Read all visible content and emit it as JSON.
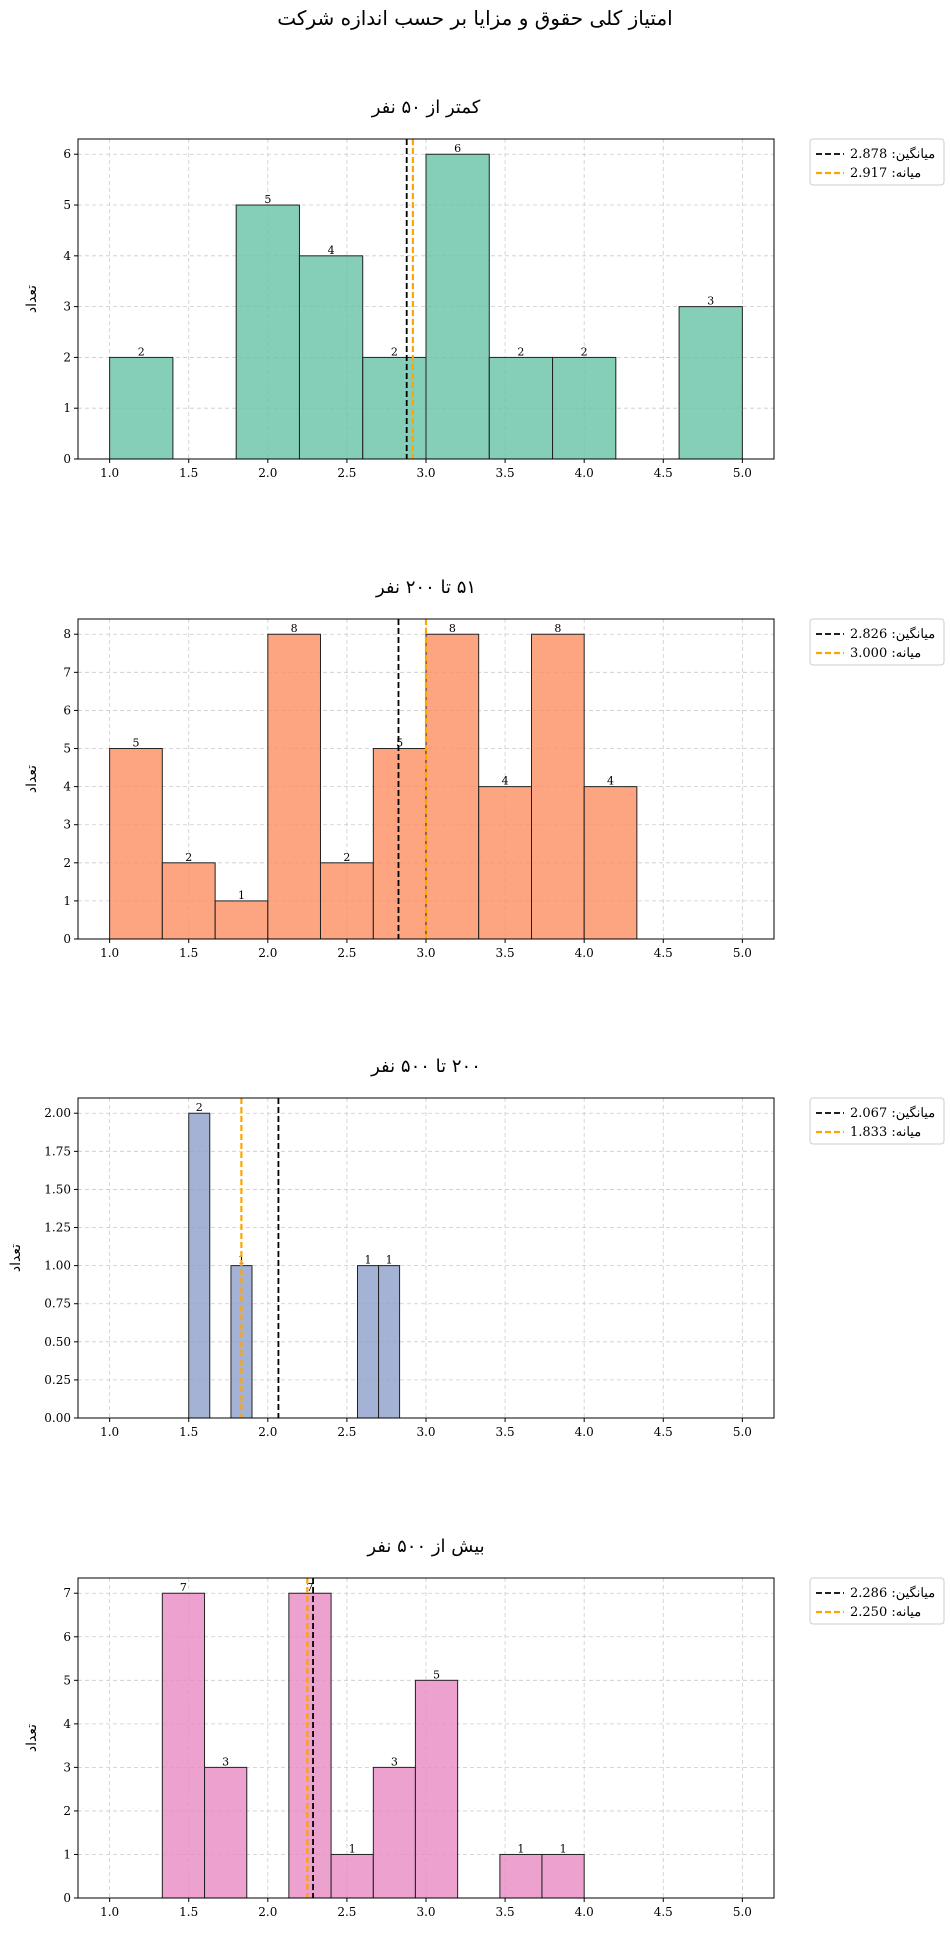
{
  "suptitle": "امتیاز کلی حقوق و مزایا بر حسب اندازه شرکت",
  "chart_data": [
    {
      "type": "bar",
      "title": "کمتر از ۵۰ نفر",
      "ylabel": "تعداد",
      "xlabel": "",
      "xlim": [
        0.8,
        5.2
      ],
      "ylim": [
        0,
        6.3
      ],
      "xticks": [
        "1.0",
        "1.5",
        "2.0",
        "2.5",
        "3.0",
        "3.5",
        "4.0",
        "4.5",
        "5.0"
      ],
      "yticks": [
        "0",
        "1",
        "2",
        "3",
        "4",
        "5",
        "6"
      ],
      "color": "#66c2a5",
      "grid": true,
      "legend_position": "outside-top-right",
      "bins": [
        {
          "x0": 1.0,
          "x1": 1.4,
          "value": 2
        },
        {
          "x0": 1.8,
          "x1": 2.2,
          "value": 5
        },
        {
          "x0": 2.2,
          "x1": 2.6,
          "value": 4
        },
        {
          "x0": 2.6,
          "x1": 3.0,
          "value": 2
        },
        {
          "x0": 3.0,
          "x1": 3.4,
          "value": 6
        },
        {
          "x0": 3.4,
          "x1": 3.8,
          "value": 2
        },
        {
          "x0": 3.8,
          "x1": 4.2,
          "value": 2
        },
        {
          "x0": 4.6,
          "x1": 5.0,
          "value": 3
        }
      ],
      "mean": 2.878,
      "median": 2.917,
      "legend": {
        "mean_label": "میانگین: 2.878",
        "median_label": "میانه: 2.917"
      }
    },
    {
      "type": "bar",
      "title": "۵۱ تا ۲۰۰ نفر",
      "ylabel": "تعداد",
      "xlabel": "",
      "xlim": [
        0.8,
        5.2
      ],
      "ylim": [
        0,
        8.4
      ],
      "xticks": [
        "1.0",
        "1.5",
        "2.0",
        "2.5",
        "3.0",
        "3.5",
        "4.0",
        "4.5",
        "5.0"
      ],
      "yticks": [
        "0",
        "1",
        "2",
        "3",
        "4",
        "5",
        "6",
        "7",
        "8"
      ],
      "color": "#fc8d62",
      "grid": true,
      "legend_position": "outside-top-right",
      "bins": [
        {
          "x0": 1.0,
          "x1": 1.333,
          "value": 5
        },
        {
          "x0": 1.333,
          "x1": 1.667,
          "value": 2
        },
        {
          "x0": 1.667,
          "x1": 2.0,
          "value": 1
        },
        {
          "x0": 2.0,
          "x1": 2.333,
          "value": 8
        },
        {
          "x0": 2.333,
          "x1": 2.667,
          "value": 2
        },
        {
          "x0": 2.667,
          "x1": 3.0,
          "value": 5
        },
        {
          "x0": 3.0,
          "x1": 3.333,
          "value": 8
        },
        {
          "x0": 3.333,
          "x1": 3.667,
          "value": 4
        },
        {
          "x0": 3.667,
          "x1": 4.0,
          "value": 8
        },
        {
          "x0": 4.0,
          "x1": 4.333,
          "value": 4
        }
      ],
      "mean": 2.826,
      "median": 3.0,
      "legend": {
        "mean_label": "میانگین: 2.826",
        "median_label": "میانه: 3.000"
      }
    },
    {
      "type": "bar",
      "title": "۲۰۰ تا ۵۰۰ نفر",
      "ylabel": "تعداد",
      "xlabel": "",
      "xlim": [
        0.8,
        5.2
      ],
      "ylim": [
        0,
        2.1
      ],
      "xticks": [
        "1.0",
        "1.5",
        "2.0",
        "2.5",
        "3.0",
        "3.5",
        "4.0",
        "4.5",
        "5.0"
      ],
      "yticks": [
        "0.00",
        "0.25",
        "0.50",
        "0.75",
        "1.00",
        "1.25",
        "1.50",
        "1.75",
        "2.00"
      ],
      "color": "#8da0cb",
      "grid": true,
      "legend_position": "outside-top-right",
      "bins": [
        {
          "x0": 1.5,
          "x1": 1.633,
          "value": 2
        },
        {
          "x0": 1.767,
          "x1": 1.9,
          "value": 1
        },
        {
          "x0": 2.567,
          "x1": 2.7,
          "value": 1
        },
        {
          "x0": 2.7,
          "x1": 2.833,
          "value": 1
        }
      ],
      "mean": 2.067,
      "median": 1.833,
      "legend": {
        "mean_label": "میانگین: 2.067",
        "median_label": "میانه: 1.833"
      }
    },
    {
      "type": "bar",
      "title": "بیش از ۵۰۰ نفر",
      "ylabel": "تعداد",
      "xlabel": "",
      "xlim": [
        0.8,
        5.2
      ],
      "ylim": [
        0,
        7.35
      ],
      "xticks": [
        "1.0",
        "1.5",
        "2.0",
        "2.5",
        "3.0",
        "3.5",
        "4.0",
        "4.5",
        "5.0"
      ],
      "yticks": [
        "0",
        "1",
        "2",
        "3",
        "4",
        "5",
        "6",
        "7"
      ],
      "color": "#e78ac3",
      "grid": true,
      "legend_position": "outside-top-right",
      "bins": [
        {
          "x0": 1.333,
          "x1": 1.6,
          "value": 7
        },
        {
          "x0": 1.6,
          "x1": 1.867,
          "value": 3
        },
        {
          "x0": 2.133,
          "x1": 2.4,
          "value": 7
        },
        {
          "x0": 2.4,
          "x1": 2.667,
          "value": 1
        },
        {
          "x0": 2.667,
          "x1": 2.933,
          "value": 3
        },
        {
          "x0": 2.933,
          "x1": 3.2,
          "value": 5
        },
        {
          "x0": 3.467,
          "x1": 3.733,
          "value": 1
        },
        {
          "x0": 3.733,
          "x1": 4.0,
          "value": 1
        }
      ],
      "mean": 2.286,
      "median": 2.25,
      "legend": {
        "mean_label": "میانگین: 2.286",
        "median_label": "میانه: 2.250"
      }
    }
  ]
}
